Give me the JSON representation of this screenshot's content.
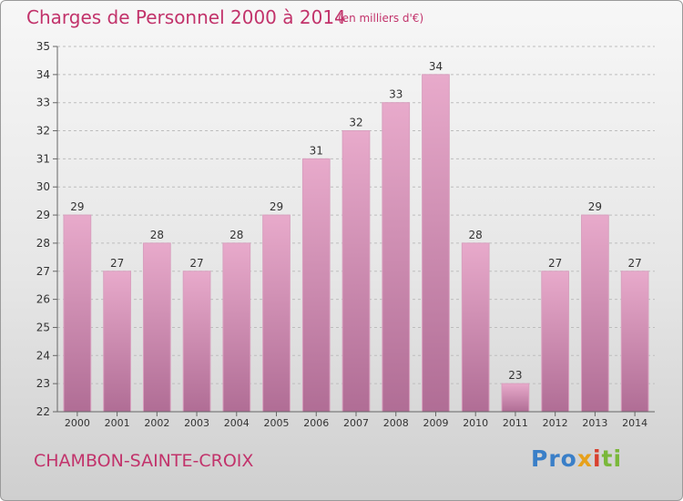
{
  "header": {
    "title": "Charges de Personnel 2000 à 2014",
    "subtitle": "(en milliers d'€)"
  },
  "footer": {
    "commune": "CHAMBON-SAINTE-CROIX",
    "logo_parts": [
      "Pro",
      "x",
      "i",
      "ti"
    ]
  },
  "colors": {
    "title": "#c2336b",
    "bar_top": "#e8aacb",
    "bar_bottom": "#b06d95",
    "grid": "#bdbdbd",
    "axis_text": "#333333"
  },
  "chart_data": {
    "type": "bar",
    "title": "Charges de Personnel 2000 à 2014",
    "subtitle": "(en milliers d'€)",
    "categories": [
      "2000",
      "2001",
      "2002",
      "2003",
      "2004",
      "2005",
      "2006",
      "2007",
      "2008",
      "2009",
      "2010",
      "2011",
      "2012",
      "2013",
      "2014"
    ],
    "values": [
      29,
      27,
      28,
      27,
      28,
      29,
      31,
      32,
      33,
      34,
      28,
      23,
      27,
      29,
      27
    ],
    "ylim": [
      22,
      35
    ],
    "yticks": [
      22,
      23,
      24,
      25,
      26,
      27,
      28,
      29,
      30,
      31,
      32,
      33,
      34,
      35
    ],
    "grid": true,
    "data_labels": true
  }
}
